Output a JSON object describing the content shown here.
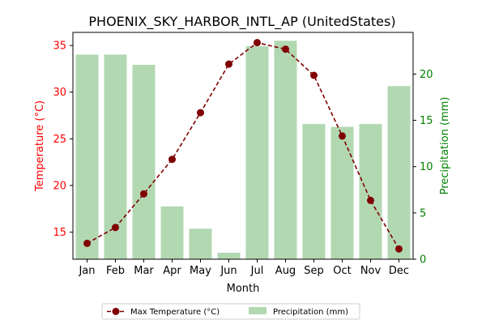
{
  "chart_data": {
    "type": "bar+line",
    "title": "PHOENIX_SKY_HARBOR_INTL_AP (UnitedStates)",
    "xlabel": "Month",
    "categories": [
      "Jan",
      "Feb",
      "Mar",
      "Apr",
      "May",
      "Jun",
      "Jul",
      "Aug",
      "Sep",
      "Oct",
      "Nov",
      "Dec"
    ],
    "left_axis": {
      "label": "Temperature (°C)",
      "color": "#ff0000",
      "ylim": [
        12.1,
        36.4
      ],
      "ticks": [
        15,
        20,
        25,
        30,
        35
      ]
    },
    "right_axis": {
      "label": "Precipitation (mm)",
      "color": "#008000",
      "ylim": [
        0,
        24.5
      ],
      "ticks": [
        0,
        5,
        10,
        15,
        20
      ]
    },
    "series": [
      {
        "name": "Max Temperature (°C)",
        "kind": "line",
        "axis": "left",
        "color": "#800000",
        "linestyle": "dashed",
        "marker": "circle",
        "values": [
          13.8,
          15.5,
          19.1,
          22.8,
          27.8,
          33.0,
          35.3,
          34.6,
          31.8,
          25.3,
          18.4,
          13.2
        ]
      },
      {
        "name": "Precipitation (mm)",
        "kind": "bar",
        "axis": "right",
        "color": "#b2d8b2",
        "values": [
          22.1,
          22.1,
          21.0,
          5.7,
          3.3,
          0.7,
          23.0,
          23.6,
          14.6,
          14.3,
          14.6,
          18.7
        ]
      }
    ],
    "legend": {
      "position": "bottom-center",
      "ncol": 2
    },
    "grid": false
  }
}
